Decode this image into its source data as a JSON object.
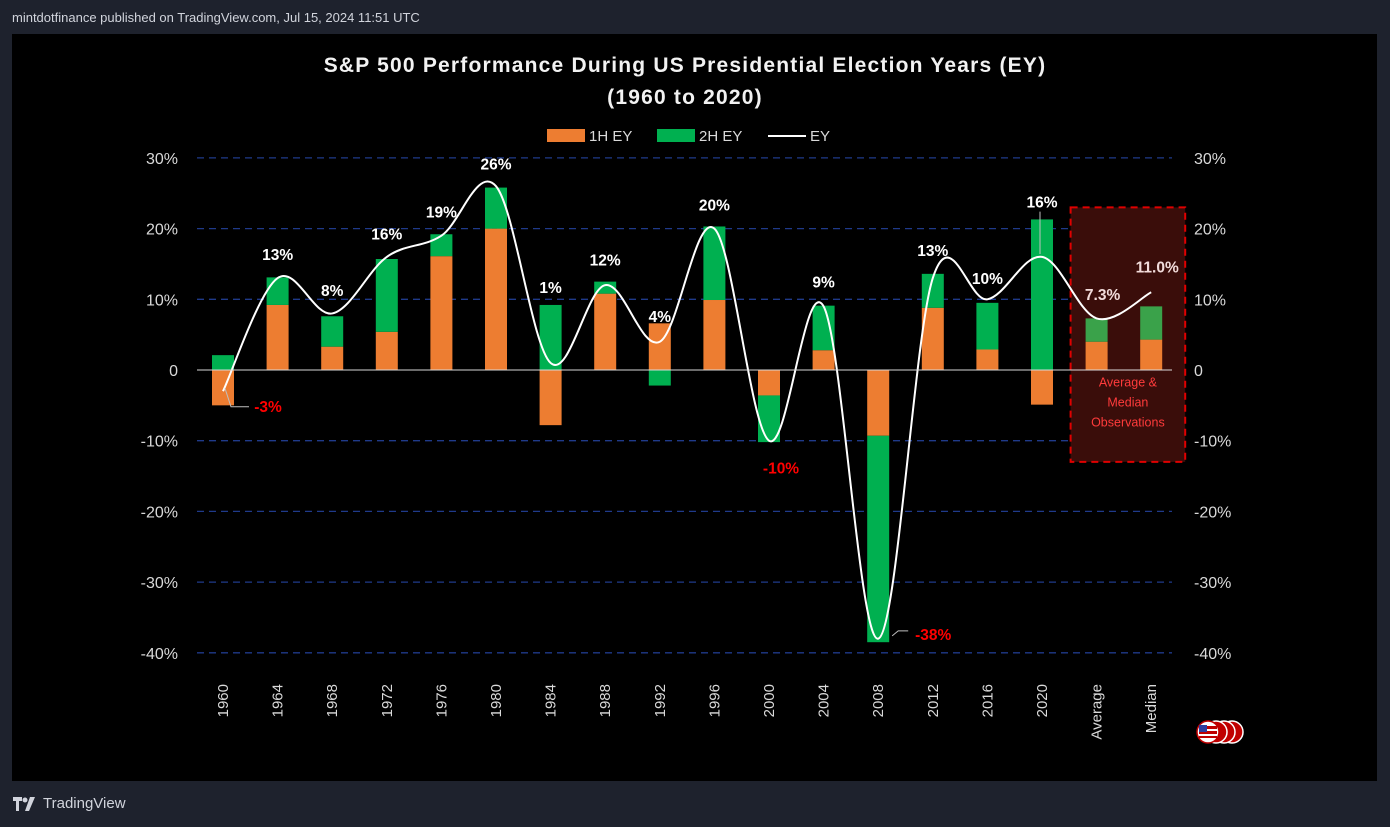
{
  "header": {
    "published": "mintdotfinance published on TradingView.com, Jul 15, 2024 11:51 UTC"
  },
  "footer": {
    "brand": "TradingView",
    "logo_icon": "tradingview-logo-icon"
  },
  "chart_data": {
    "type": "bar",
    "stacked": true,
    "title_line1": "S&P 500 Performance During US Presidential Election Years (EY)",
    "title_line2": "(1960 to 2020)",
    "categories": [
      "1960",
      "1964",
      "1968",
      "1972",
      "1976",
      "1980",
      "1984",
      "1988",
      "1992",
      "1996",
      "2000",
      "2004",
      "2008",
      "2012",
      "2016",
      "2020",
      "Average",
      "Median"
    ],
    "series": [
      {
        "name": "1H EY",
        "color": "#ed7d31",
        "values": [
          -5,
          9.2,
          3.3,
          5.4,
          16.1,
          20,
          -7.8,
          10.8,
          6.6,
          9.9,
          -3.6,
          2.8,
          -9.3,
          8.8,
          2.9,
          -4.9,
          4.0,
          4.3
        ]
      },
      {
        "name": "2H EY",
        "color": "#00b050",
        "values": [
          2.1,
          3.9,
          4.3,
          10.3,
          3.1,
          5.8,
          9.2,
          1.7,
          -2.2,
          10.4,
          -6.6,
          6.3,
          -29.2,
          4.8,
          6.6,
          21.3,
          3.3,
          4.7
        ]
      },
      {
        "name": "EY",
        "color": "#ffffff",
        "type": "line",
        "values": [
          -3,
          13,
          8,
          16,
          19,
          26,
          1,
          12,
          4,
          20,
          -10,
          9,
          -38,
          13,
          10,
          16,
          7.3,
          11.0
        ]
      }
    ],
    "data_labels": [
      "-3%",
      "13%",
      "8%",
      "16%",
      "19%",
      "26%",
      "1%",
      "12%",
      "4%",
      "20%",
      "-10%",
      "9%",
      "-38%",
      "13%",
      "10%",
      "16%",
      "7.3%",
      "11.0%"
    ],
    "negative_label_color": "#ff0000",
    "positive_label_color": "#ffffff",
    "ylim": [
      -40,
      30
    ],
    "yticks": [
      30,
      20,
      10,
      0,
      -10,
      -20,
      -30,
      -40
    ],
    "ytick_labels": [
      "30%",
      "20%",
      "10%",
      "0",
      "-10%",
      "-20%",
      "-30%",
      "-40%"
    ],
    "grid": true,
    "legend_position": "top-center",
    "annotation": {
      "text_line1": "Average &",
      "text_line2": "Median",
      "text_line3": "Observations"
    },
    "corner_icon": "us-flag-coins-icon"
  }
}
